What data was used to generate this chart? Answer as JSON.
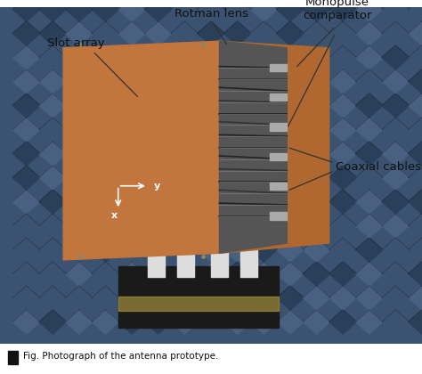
{
  "figure_width": 4.74,
  "figure_height": 4.2,
  "dpi": 100,
  "bg_color": "#ffffff",
  "photo_bg": "#3b5270",
  "foam_dark": "#2a3f5a",
  "foam_mid": "#3b5270",
  "foam_light": "#4a6080",
  "foam_shadow": "#1a2a3a",
  "copper_main": "#c87941",
  "copper_back": "#b06830",
  "base_color": "#1a1a1a",
  "tape_color": "#b8a040",
  "support_color": "#dddddd",
  "cable_dark": "#333333",
  "cable_darker": "#222222",
  "cable_highlight": "#888888",
  "connector_color": "#aaaaaa",
  "center_color": "#555555",
  "arrow_color": "#333333",
  "axis_color": "#ffffff",
  "label_color": "#111111",
  "caption_marker": "#111111",
  "label_fontsize": 9.5,
  "axis_fontsize": 8,
  "caption_fontsize": 7.5,
  "rotman_label": "Rotman lens",
  "monopulse_label": "Monopulse\ncomparator",
  "slot_label": "Slot array",
  "coaxial_label": "Coaxial cables",
  "caption_text": "Fig. Photograph of the antenna prototype.",
  "axis_x_label": "y",
  "axis_y_label": "x"
}
